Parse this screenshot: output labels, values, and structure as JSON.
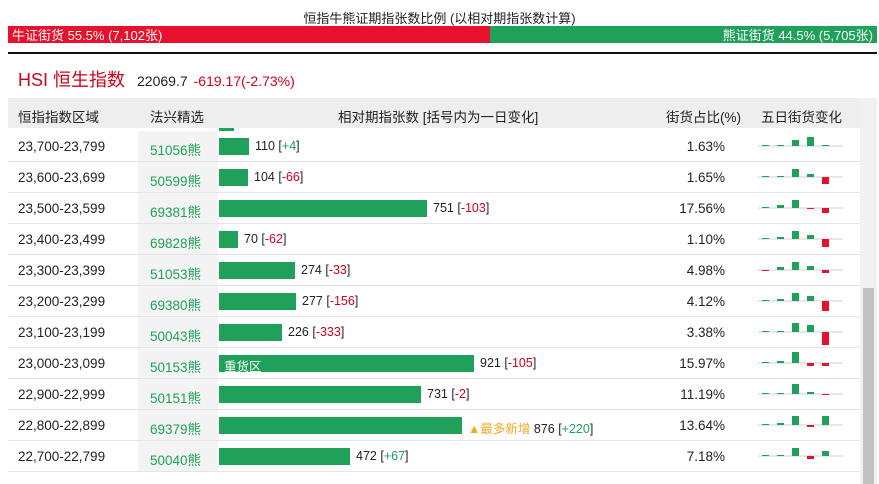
{
  "header": {
    "title": "恒指牛熊证期指张数比例 (以相对期指张数计算)",
    "bull_label": "牛证街货 55.5% (7,102张)",
    "bear_label": "熊证街货 44.5% (5,705张)",
    "bull_share": 0.555
  },
  "index": {
    "name": "HSI 恒生指数",
    "value": "22069.7",
    "change": "-619.17(-2.73%)"
  },
  "table": {
    "headers": {
      "range": "恒指指数区域",
      "code": "法兴精选",
      "futures": "相对期指张数 [括号内为一日变化]",
      "share": "街货占比(%)",
      "five_day": "五日街货变化"
    },
    "rows": [
      {
        "range": "23,700-23,799",
        "code": "51056熊",
        "tag": "",
        "value": 110,
        "value_text": "110",
        "change": "+4",
        "pct": "1.63%",
        "spark": [
          0,
          1,
          6,
          9,
          1
        ]
      },
      {
        "range": "23,600-23,699",
        "code": "50599熊",
        "tag": "",
        "value": 104,
        "value_text": "104",
        "change": "-66",
        "pct": "1.65%",
        "spark": [
          0,
          1,
          8,
          3,
          -7
        ]
      },
      {
        "range": "23,500-23,599",
        "code": "69381熊",
        "tag": "",
        "value": 751,
        "value_text": "751",
        "change": "-103",
        "pct": "17.56%",
        "spark": [
          0,
          3,
          8,
          -1,
          -5
        ]
      },
      {
        "range": "23,400-23,499",
        "code": "69828熊",
        "tag": "",
        "value": 70,
        "value_text": "70",
        "change": "-62",
        "pct": "1.10%",
        "spark": [
          0,
          2,
          8,
          4,
          -8
        ]
      },
      {
        "range": "23,300-23,399",
        "code": "51053熊",
        "tag": "",
        "value": 274,
        "value_text": "274",
        "change": "-33",
        "pct": "4.98%",
        "spark": [
          -1,
          3,
          8,
          4,
          -3
        ]
      },
      {
        "range": "23,200-23,299",
        "code": "69380熊",
        "tag": "",
        "value": 277,
        "value_text": "277",
        "change": "-156",
        "pct": "4.12%",
        "spark": [
          0,
          2,
          8,
          5,
          -10
        ]
      },
      {
        "range": "23,100-23,199",
        "code": "50043熊",
        "tag": "",
        "value": 226,
        "value_text": "226",
        "change": "-333",
        "pct": "3.38%",
        "spark": [
          0,
          1,
          9,
          7,
          -13
        ]
      },
      {
        "range": "23,000-23,099",
        "code": "50153熊",
        "tag": "重货区",
        "value": 921,
        "value_text": "921",
        "change": "-105",
        "pct": "15.97%",
        "spark": [
          0,
          2,
          11,
          -3,
          -3
        ]
      },
      {
        "range": "22,900-22,999",
        "code": "50151熊",
        "tag": "",
        "value": 731,
        "value_text": "731",
        "change": "-2",
        "pct": "11.19%",
        "spark": [
          0,
          1,
          10,
          2,
          -1
        ]
      },
      {
        "range": "22,800-22,899",
        "code": "69379熊",
        "tag": "▲最多新增",
        "value": 876,
        "value_text": "876",
        "change": "+220",
        "pct": "13.64%",
        "spark": [
          0,
          2,
          9,
          -2,
          9
        ]
      },
      {
        "range": "22,700-22,799",
        "code": "50040熊",
        "tag": "",
        "value": 472,
        "value_text": "472",
        "change": "+67",
        "pct": "7.18%",
        "spark": [
          0,
          1,
          8,
          -3,
          5
        ]
      }
    ]
  },
  "colors": {
    "bull": "#e8112d",
    "bear": "#1fa15a",
    "accent_orange": "#f5a623"
  }
}
